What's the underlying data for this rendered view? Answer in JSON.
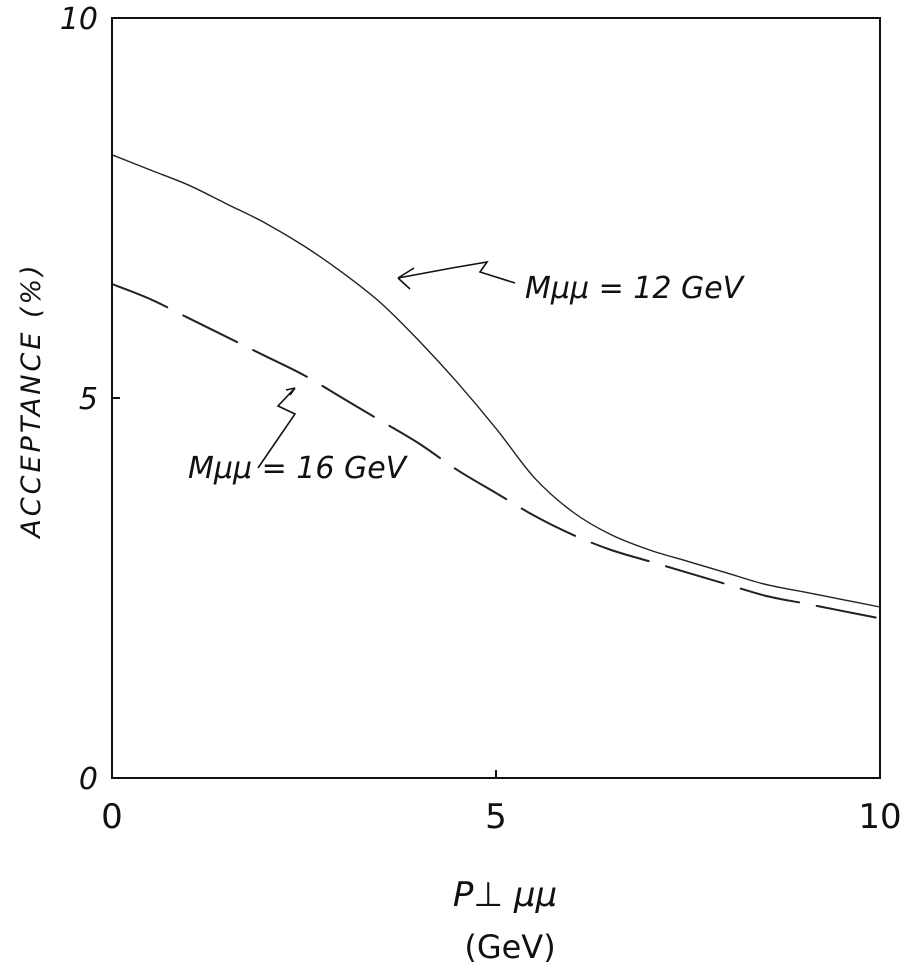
{
  "chart_data": {
    "type": "line",
    "title": "",
    "xlabel": "P⊥ μμ",
    "xunit": "(GeV)",
    "ylabel": "ACCEPTANCE (%)",
    "xlim": [
      0,
      10
    ],
    "ylim": [
      0,
      10
    ],
    "xticks": [
      "0",
      "5",
      "10"
    ],
    "yticks": [
      "0",
      "5",
      "10"
    ],
    "grid": false,
    "series": [
      {
        "name": "Mμμ = 12 GeV",
        "style": "solid",
        "x": [
          0,
          0.5,
          1,
          1.5,
          2,
          2.5,
          3,
          3.5,
          4,
          4.5,
          5,
          5.5,
          6,
          6.5,
          7,
          7.5,
          8,
          8.5,
          9,
          9.5,
          10
        ],
        "y": [
          8.2,
          8.0,
          7.8,
          7.55,
          7.3,
          7.0,
          6.65,
          6.25,
          5.75,
          5.2,
          4.6,
          3.95,
          3.5,
          3.2,
          3.0,
          2.85,
          2.7,
          2.55,
          2.45,
          2.35,
          2.25
        ]
      },
      {
        "name": "Mμμ = 16 GeV",
        "style": "dashed",
        "x": [
          0,
          0.5,
          1,
          1.5,
          2,
          2.5,
          3,
          3.5,
          4,
          4.5,
          5,
          5.5,
          6,
          6.5,
          7,
          7.5,
          8,
          8.5,
          9,
          9.5,
          10
        ],
        "y": [
          6.5,
          6.3,
          6.05,
          5.8,
          5.55,
          5.3,
          5.0,
          4.7,
          4.4,
          4.05,
          3.75,
          3.45,
          3.2,
          3.0,
          2.85,
          2.7,
          2.55,
          2.4,
          2.3,
          2.2,
          2.1
        ]
      }
    ]
  }
}
